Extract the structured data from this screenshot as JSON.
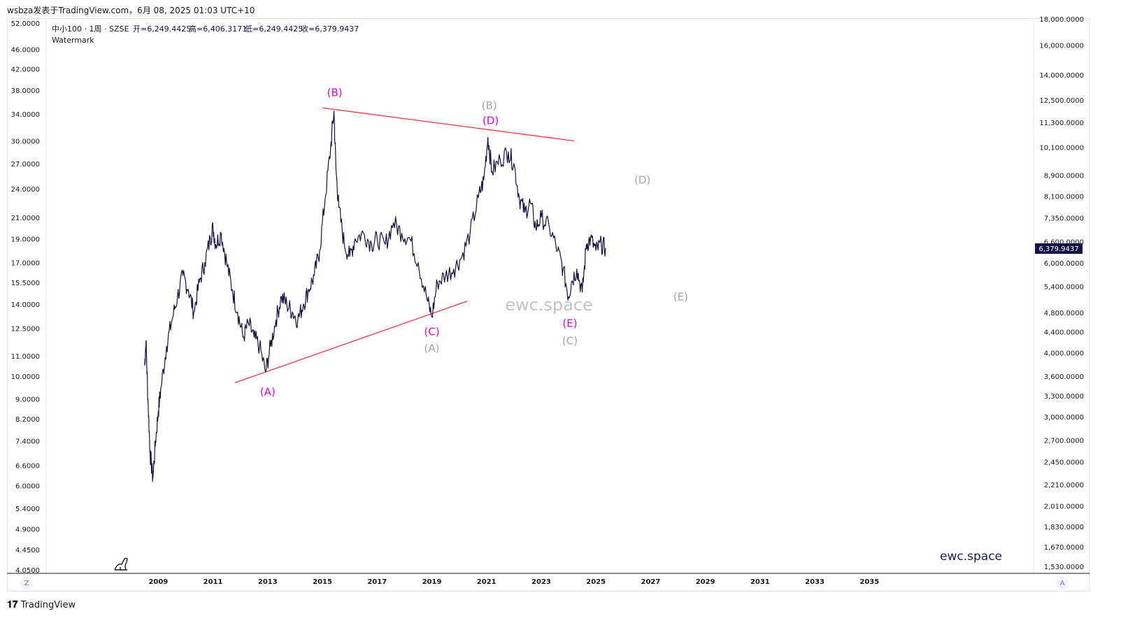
{
  "header_text": "wsbza发表于TradingView.com，6月 08, 2025 01:03 UTC+10",
  "legend": {
    "symbol": "中小100 · 1周 · SZSE",
    "open": "开=6,249.4425",
    "high": "高=6,406.3171",
    "low": "低=6,249.4425",
    "close": "收=6,379.9437",
    "indicator": "Watermark"
  },
  "watermark_center": "ewc.space",
  "watermark_corner": "ewc.space",
  "footer_brand": "TradingView",
  "corner_left_btn": "Z",
  "corner_right_btn": "A",
  "price_badge": "6,379.9437",
  "colors": {
    "price_line": "#131244",
    "trendline": "#f23645",
    "magenta_label": "#e600e6",
    "gray_label": "#a3a6af",
    "badge_bg": "#131244",
    "watermark_corner": "#131a6b"
  },
  "chart_data": {
    "type": "line",
    "series": [
      {
        "values": [
          [
            2008.5,
            10.5
          ],
          [
            2008.55,
            11.8
          ],
          [
            2008.62,
            9.0
          ],
          [
            2008.7,
            7.0
          ],
          [
            2008.8,
            6.2
          ],
          [
            2008.9,
            7.4
          ],
          [
            2009.0,
            8.5
          ],
          [
            2009.1,
            9.5
          ],
          [
            2009.3,
            11.5
          ],
          [
            2009.5,
            13.0
          ],
          [
            2009.7,
            14.5
          ],
          [
            2009.9,
            16.0
          ],
          [
            2010.1,
            15.0
          ],
          [
            2010.3,
            13.5
          ],
          [
            2010.5,
            15.5
          ],
          [
            2010.7,
            17.0
          ],
          [
            2010.9,
            19.0
          ],
          [
            2011.0,
            20.0
          ],
          [
            2011.1,
            18.5
          ],
          [
            2011.3,
            19.5
          ],
          [
            2011.5,
            17.0
          ],
          [
            2011.7,
            15.0
          ],
          [
            2011.9,
            13.5
          ],
          [
            2012.1,
            12.0
          ],
          [
            2012.3,
            12.8
          ],
          [
            2012.5,
            12.0
          ],
          [
            2012.7,
            11.5
          ],
          [
            2012.92,
            10.2
          ],
          [
            2013.1,
            11.5
          ],
          [
            2013.3,
            13.0
          ],
          [
            2013.5,
            14.5
          ],
          [
            2013.7,
            14.0
          ],
          [
            2013.9,
            13.5
          ],
          [
            2014.1,
            13.0
          ],
          [
            2014.3,
            14.0
          ],
          [
            2014.5,
            15.0
          ],
          [
            2014.7,
            16.0
          ],
          [
            2014.9,
            18.0
          ],
          [
            2015.1,
            23.0
          ],
          [
            2015.3,
            29.0
          ],
          [
            2015.42,
            34.5
          ],
          [
            2015.5,
            26.0
          ],
          [
            2015.6,
            22.0
          ],
          [
            2015.8,
            18.5
          ],
          [
            2016.0,
            17.5
          ],
          [
            2016.2,
            19.0
          ],
          [
            2016.5,
            19.5
          ],
          [
            2016.8,
            18.5
          ],
          [
            2017.0,
            19.0
          ],
          [
            2017.3,
            18.5
          ],
          [
            2017.6,
            20.5
          ],
          [
            2017.9,
            19.5
          ],
          [
            2018.2,
            19.0
          ],
          [
            2018.5,
            17.0
          ],
          [
            2018.8,
            14.5
          ],
          [
            2019.0,
            13.2
          ],
          [
            2019.2,
            15.5
          ],
          [
            2019.5,
            16.0
          ],
          [
            2019.8,
            16.5
          ],
          [
            2020.1,
            17.5
          ],
          [
            2020.4,
            19.5
          ],
          [
            2020.7,
            23.0
          ],
          [
            2020.9,
            25.0
          ],
          [
            2021.05,
            30.5
          ],
          [
            2021.2,
            26.0
          ],
          [
            2021.5,
            27.5
          ],
          [
            2021.8,
            28.5
          ],
          [
            2022.0,
            27.0
          ],
          [
            2022.2,
            23.0
          ],
          [
            2022.4,
            21.5
          ],
          [
            2022.6,
            22.5
          ],
          [
            2022.8,
            20.0
          ],
          [
            2023.0,
            21.0
          ],
          [
            2023.3,
            20.0
          ],
          [
            2023.6,
            18.0
          ],
          [
            2023.8,
            16.5
          ],
          [
            2024.0,
            14.5
          ],
          [
            2024.1,
            15.5
          ],
          [
            2024.3,
            16.5
          ],
          [
            2024.5,
            14.8
          ],
          [
            2024.65,
            18.5
          ],
          [
            2024.8,
            19.0
          ],
          [
            2025.0,
            18.0
          ],
          [
            2025.2,
            18.5
          ],
          [
            2025.35,
            18.2
          ]
        ]
      }
    ],
    "left_axis_ticks": [
      "52.0000",
      "46.0000",
      "42.0000",
      "38.0000",
      "34.0000",
      "30.0000",
      "27.0000",
      "24.0000",
      "21.0000",
      "19.0000",
      "17.0000",
      "15.5000",
      "14.0000",
      "12.5000",
      "11.0000",
      "10.0000",
      "9.0000",
      "8.2000",
      "7.4000",
      "6.6000",
      "6.0000",
      "5.4000",
      "4.9000",
      "4.4500",
      "4.0500"
    ],
    "right_axis_ticks": [
      "18,000.0000",
      "16,000.0000",
      "14,000.0000",
      "12,500.0000",
      "11,300.0000",
      "10,100.0000",
      "8,900.0000",
      "8,100.0000",
      "7,350.0000",
      "6,600.0000",
      "6,000.0000",
      "5,400.0000",
      "4,800.0000",
      "4,400.0000",
      "4,000.0000",
      "3,600.0000",
      "3,300.0000",
      "3,000.0000",
      "2,700.0000",
      "2,450.0000",
      "2,210.0000",
      "2,010.0000",
      "1,830.0000",
      "1,670.0000",
      "1,530.0000"
    ],
    "x_ticks": [
      "2009",
      "2011",
      "2013",
      "2015",
      "2017",
      "2019",
      "2021",
      "2023",
      "2025",
      "2027",
      "2029",
      "2031",
      "2033",
      "2035"
    ],
    "xlim": [
      2004.9,
      2041.0
    ],
    "ylim": [
      4.05,
      52.0
    ],
    "y_scale": "log",
    "trendlines": [
      {
        "x1": 2011.8,
        "y1": 9.7,
        "x2": 2020.3,
        "y2": 14.2
      },
      {
        "x1": 2015.0,
        "y1": 35.0,
        "x2": 2024.2,
        "y2": 30.0
      }
    ],
    "wave_labels": [
      {
        "text": "(A)",
        "color": "magenta",
        "x": 2013.0,
        "y": 9.3
      },
      {
        "text": "(B)",
        "color": "magenta",
        "x": 2015.45,
        "y": 37.6
      },
      {
        "text": "(C)",
        "color": "magenta",
        "x": 2019.0,
        "y": 12.3
      },
      {
        "text": "(D)",
        "color": "magenta",
        "x": 2021.15,
        "y": 33.0
      },
      {
        "text": "(E)",
        "color": "magenta",
        "x": 2024.05,
        "y": 12.8
      },
      {
        "text": "(A)",
        "color": "gray",
        "x": 2019.0,
        "y": 11.4
      },
      {
        "text": "(B)",
        "color": "gray",
        "x": 2021.1,
        "y": 35.4
      },
      {
        "text": "(C)",
        "color": "gray",
        "x": 2024.05,
        "y": 11.8
      },
      {
        "text": "(D)",
        "color": "gray",
        "x": 2026.7,
        "y": 25.0
      },
      {
        "text": "(E)",
        "color": "gray",
        "x": 2028.1,
        "y": 14.5
      }
    ]
  }
}
